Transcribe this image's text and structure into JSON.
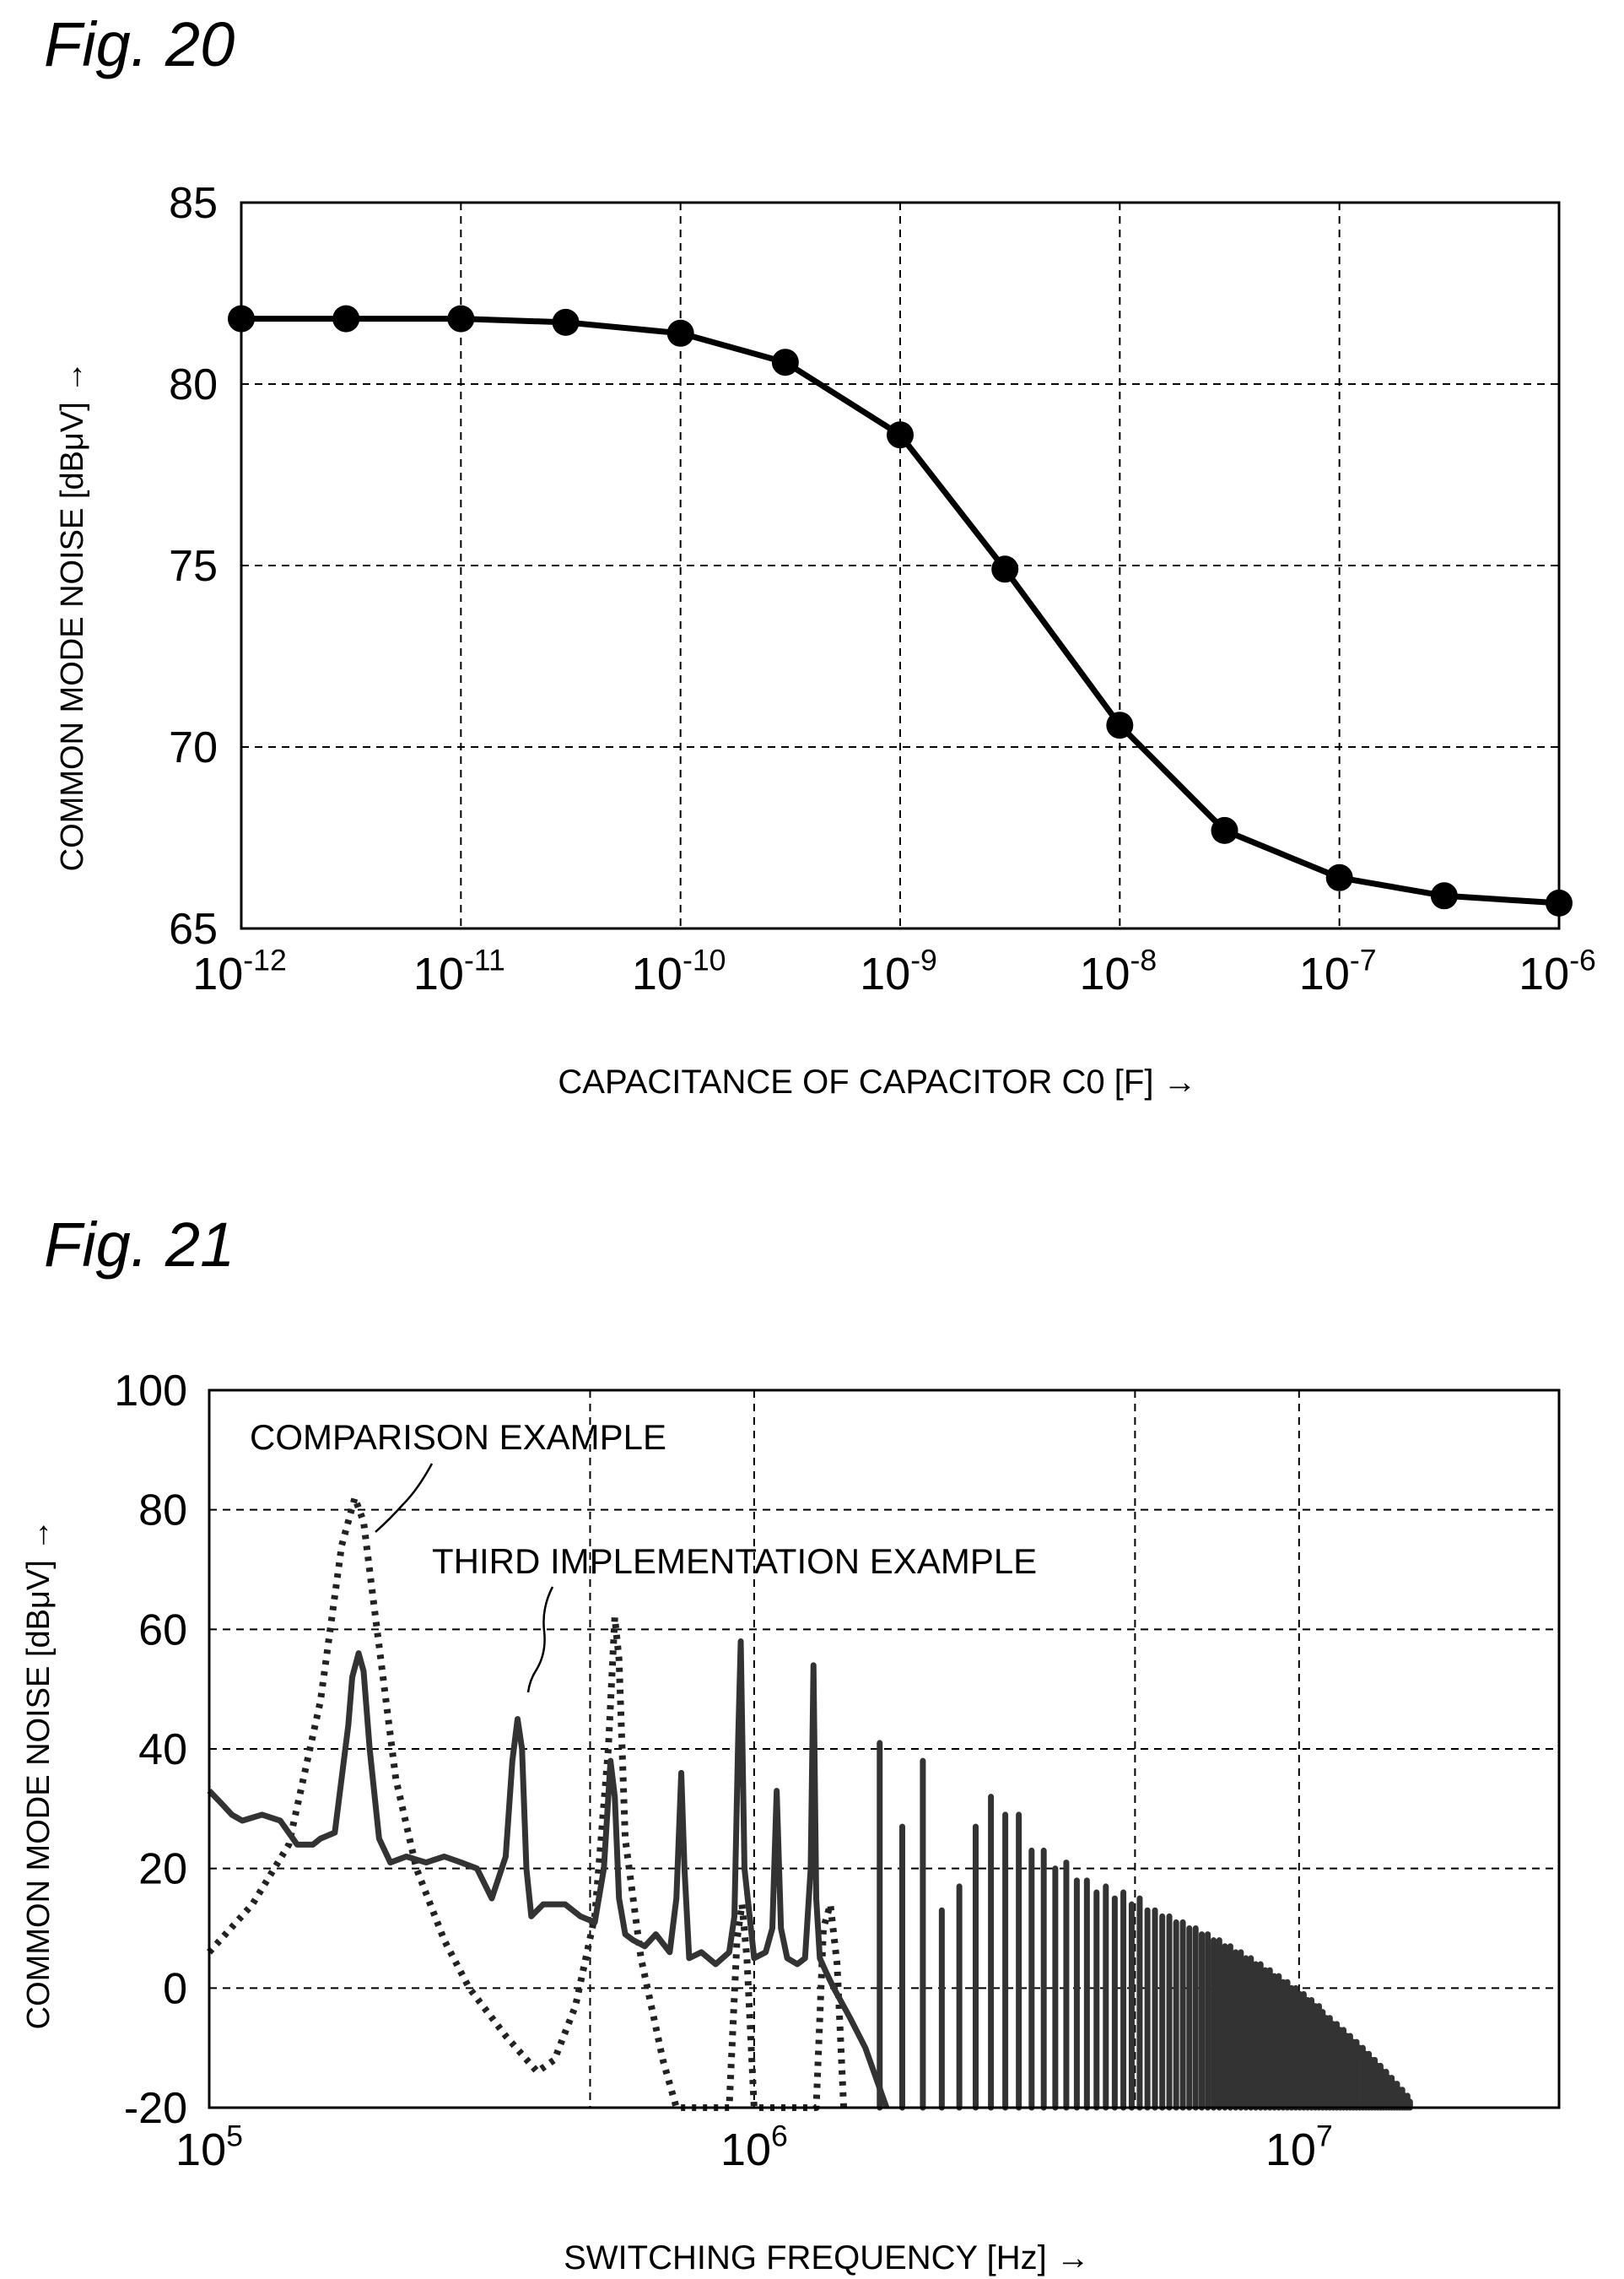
{
  "figures": [
    {
      "label": "Fig. 20"
    },
    {
      "label": "Fig. 21"
    }
  ],
  "chart_data": [
    {
      "type": "line",
      "xscale": "log",
      "xlim": [
        1e-12,
        1e-06
      ],
      "ylim": [
        65,
        85
      ],
      "grid": true,
      "xlabel": "CAPACITANCE OF CAPACITOR C0 [F] →",
      "ylabel": "COMMON MODE NOISE [dBμV] →",
      "x_tick_labels": [
        {
          "base": "10",
          "exp": "-12"
        },
        {
          "base": "10",
          "exp": "-11"
        },
        {
          "base": "10",
          "exp": "-10"
        },
        {
          "base": "10",
          "exp": "-9"
        },
        {
          "base": "10",
          "exp": "-8"
        },
        {
          "base": "10",
          "exp": "-7"
        },
        {
          "base": "10",
          "exp": "-6"
        }
      ],
      "y_tick_labels": [
        "85",
        "80",
        "75",
        "70",
        "65"
      ],
      "series": [
        {
          "x": [
            1e-12,
            3e-12,
            1e-11,
            3e-11,
            1e-10,
            3e-10,
            1e-09,
            3e-09,
            1e-08,
            3e-08,
            1e-07,
            3e-07,
            1e-06
          ],
          "y": [
            81.8,
            81.8,
            81.8,
            81.7,
            81.4,
            80.6,
            78.6,
            74.9,
            70.6,
            67.7,
            66.4,
            65.9,
            65.7
          ]
        }
      ]
    },
    {
      "type": "line",
      "xscale": "log",
      "xlim": [
        100000,
        30000000
      ],
      "ylim": [
        -20,
        100
      ],
      "grid": true,
      "xlabel": "SWITCHING FREQUENCY [Hz] →",
      "ylabel": "COMMON MODE NOISE [dBμV] →",
      "x_tick_labels": [
        {
          "base": "10",
          "exp": "5"
        },
        {
          "base": "10",
          "exp": "6"
        },
        {
          "base": "10",
          "exp": "7"
        }
      ],
      "y_tick_labels": [
        "100",
        "80",
        "60",
        "40",
        "20",
        "0",
        "-20"
      ],
      "annotations": [
        "COMPARISON EXAMPLE",
        "THIRD IMPLEMENTATION EXAMPLE"
      ],
      "series": [
        {
          "name": "COMPARISON EXAMPLE",
          "style": "dotted",
          "x": [
            100000,
            120000,
            140000,
            160000,
            175000,
            185000,
            192000,
            200000,
            220000,
            240000,
            270000,
            300000,
            350000,
            400000,
            430000,
            470000,
            510000,
            540000,
            555000,
            565000,
            580000,
            620000,
            680000,
            720000,
            900000,
            930000,
            950000,
            970000,
            1000000,
            1300000,
            1340000,
            1380000,
            1420000,
            1460000,
            1500000
          ],
          "y": [
            6,
            14,
            24,
            48,
            74,
            82,
            78,
            65,
            35,
            20,
            8,
            0,
            -8,
            -14,
            -12,
            -3,
            12,
            40,
            62,
            55,
            25,
            5,
            -12,
            -20,
            -20,
            8,
            14,
            5,
            -20,
            -20,
            10,
            14,
            4,
            -20,
            -20
          ]
        },
        {
          "name": "THIRD IMPLEMENTATION EXAMPLE",
          "style": "solid",
          "x": [
            100000,
            105000,
            110000,
            115000,
            125000,
            135000,
            145000,
            155000,
            160000,
            170000,
            180000,
            183000,
            188000,
            192000,
            197000,
            205000,
            215000,
            230000,
            250000,
            270000,
            290000,
            310000,
            330000,
            350000,
            360000,
            368000,
            375000,
            382000,
            390000,
            410000,
            450000,
            480000,
            510000,
            530000,
            545000,
            555000,
            565000,
            580000,
            600000,
            630000,
            660000,
            700000,
            720000,
            735000,
            745000,
            760000,
            800000,
            850000,
            900000,
            920000,
            935000,
            945000,
            960000,
            1000000,
            1050000,
            1080000,
            1100000,
            1120000,
            1150000,
            1200000,
            1240000,
            1270000,
            1285000,
            1300000,
            1320000,
            1350000,
            1400000,
            1500000,
            1600000,
            1750000
          ],
          "y": [
            33,
            31,
            29,
            28,
            29,
            28,
            24,
            24,
            25,
            26,
            44,
            52,
            56,
            53,
            40,
            25,
            21,
            22,
            21,
            22,
            21,
            20,
            15,
            22,
            38,
            45,
            40,
            20,
            12,
            14,
            14,
            12,
            11,
            20,
            38,
            32,
            15,
            9,
            8,
            7,
            9,
            6,
            15,
            36,
            20,
            5,
            6,
            4,
            6,
            12,
            42,
            58,
            20,
            5,
            6,
            10,
            33,
            10,
            5,
            4,
            5,
            20,
            54,
            15,
            5,
            3,
            0,
            -5,
            -10,
            -20
          ]
        }
      ],
      "harmonic_peaks": {
        "x": [
          1700000,
          1870000,
          2040000,
          2210000,
          2380000,
          2550000,
          2720000,
          2890000,
          3060000,
          3230000,
          3400000,
          3570000,
          3740000,
          3910000,
          4080000,
          4250000,
          4420000,
          4590000,
          4760000,
          4930000,
          5100000,
          5270000,
          5440000,
          5610000,
          5780000,
          5950000,
          6120000,
          6290000,
          6460000,
          6630000,
          6800000,
          6970000,
          7140000,
          7310000,
          7480000,
          7650000,
          7820000,
          7990000,
          8160000,
          8330000,
          8500000,
          8670000,
          8840000,
          9010000,
          9180000,
          9350000,
          9520000,
          9690000,
          9860000,
          10030000,
          10200000,
          10370000,
          10540000,
          10710000,
          10880000,
          11050000,
          11220000,
          11390000,
          11560000,
          11730000,
          11900000,
          12070000,
          12240000,
          12410000,
          12580000,
          12750000,
          12920000,
          13090000,
          13260000,
          13430000,
          13600000,
          13770000,
          13940000,
          14110000,
          14280000,
          14450000,
          14620000,
          14790000,
          14960000,
          15130000,
          15300000,
          15470000,
          15640000,
          15810000,
          15980000
        ],
        "y": [
          41,
          27,
          38,
          13,
          17,
          27,
          32,
          29,
          29,
          23,
          23,
          20,
          21,
          18,
          18,
          16,
          17,
          15,
          16,
          14,
          15,
          13,
          13,
          12,
          12,
          11,
          11,
          10,
          10,
          9,
          9,
          8,
          8,
          7,
          7,
          6,
          6,
          5,
          5,
          4,
          4,
          3,
          3,
          2,
          2,
          1,
          1,
          0,
          0,
          -1,
          -1,
          -2,
          -2,
          -3,
          -3,
          -4,
          -5,
          -5,
          -6,
          -6,
          -7,
          -7,
          -8,
          -8,
          -9,
          -9,
          -10,
          -10,
          -11,
          -11,
          -12,
          -12,
          -13,
          -13,
          -14,
          -14,
          -15,
          -15,
          -16,
          -16,
          -17,
          -17,
          -18,
          -18,
          -19
        ]
      }
    }
  ]
}
